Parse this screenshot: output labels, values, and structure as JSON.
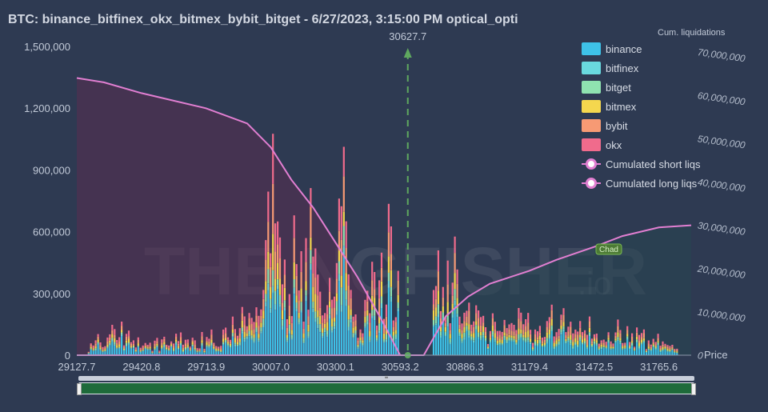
{
  "chart_data": {
    "type": "bar",
    "title": "BTC: binance_bitfinex_okx_bitmex_bybit_bitget - 6/27/2023, 3:15:00 PM optical_opti",
    "x_tick_labels": [
      "29127.7",
      "29420.8",
      "29713.9",
      "30007.0",
      "30300.1",
      "30593.2",
      "30886.3",
      "31179.4",
      "31472.5",
      "31765.6"
    ],
    "x_end_label": "Price",
    "y_left_ticks": [
      "0",
      "300,000",
      "600,000",
      "900,000",
      "1,200,000",
      "1,500,000"
    ],
    "y_left_range": [
      0,
      1500000
    ],
    "y_right_title": "Cum. liquidations",
    "y_right_ticks": [
      "0",
      "10,000,000",
      "20,000,000",
      "30,000,000",
      "40,000,000",
      "50,000,000",
      "60,000,000",
      "70,000,000"
    ],
    "y_right_range": [
      0,
      70000000
    ],
    "x_range": [
      29127.7,
      31912
    ],
    "current_price": 30627.7,
    "current_price_label": "30627.7",
    "stacked": true,
    "series": [
      {
        "name": "binance",
        "color": "#3ec2e8"
      },
      {
        "name": "bitfinex",
        "color": "#69d9de"
      },
      {
        "name": "bitget",
        "color": "#8fe3b0"
      },
      {
        "name": "bitmex",
        "color": "#f5d74e"
      },
      {
        "name": "bybit",
        "color": "#f79a74"
      },
      {
        "name": "okx",
        "color": "#f06b8c"
      }
    ],
    "bar_totals_sampled": [
      {
        "x": 29180,
        "v": 40000
      },
      {
        "x": 29260,
        "v": 120000
      },
      {
        "x": 29300,
        "v": 200000
      },
      {
        "x": 29380,
        "v": 70000
      },
      {
        "x": 29450,
        "v": 60000
      },
      {
        "x": 29550,
        "v": 90000
      },
      {
        "x": 29650,
        "v": 70000
      },
      {
        "x": 29750,
        "v": 110000
      },
      {
        "x": 29830,
        "v": 150000
      },
      {
        "x": 29900,
        "v": 200000
      },
      {
        "x": 29960,
        "v": 260000
      },
      {
        "x": 30010,
        "v": 1050000
      },
      {
        "x": 30050,
        "v": 500000
      },
      {
        "x": 30090,
        "v": 330000
      },
      {
        "x": 30120,
        "v": 700000
      },
      {
        "x": 30150,
        "v": 420000
      },
      {
        "x": 30200,
        "v": 680000
      },
      {
        "x": 30240,
        "v": 420000
      },
      {
        "x": 30300,
        "v": 330000
      },
      {
        "x": 30335,
        "v": 1150000
      },
      {
        "x": 30380,
        "v": 300000
      },
      {
        "x": 30420,
        "v": 250000
      },
      {
        "x": 30470,
        "v": 400000
      },
      {
        "x": 30510,
        "v": 500000
      },
      {
        "x": 30545,
        "v": 800000
      },
      {
        "x": 30565,
        "v": 600000
      },
      {
        "x": 30590,
        "v": 300000
      },
      {
        "x": 30740,
        "v": 450000
      },
      {
        "x": 30770,
        "v": 700000
      },
      {
        "x": 30800,
        "v": 400000
      },
      {
        "x": 30830,
        "v": 500000
      },
      {
        "x": 30870,
        "v": 300000
      },
      {
        "x": 30920,
        "v": 240000
      },
      {
        "x": 31000,
        "v": 150000
      },
      {
        "x": 31100,
        "v": 180000
      },
      {
        "x": 31180,
        "v": 200000
      },
      {
        "x": 31250,
        "v": 170000
      },
      {
        "x": 31350,
        "v": 210000
      },
      {
        "x": 31450,
        "v": 150000
      },
      {
        "x": 31550,
        "v": 130000
      },
      {
        "x": 31650,
        "v": 110000
      },
      {
        "x": 31750,
        "v": 80000
      },
      {
        "x": 31850,
        "v": 40000
      }
    ],
    "cumulative_series": [
      {
        "name": "Cumulated short liqs",
        "color": "#e27fd2",
        "axis": "right",
        "points": [
          [
            29127.7,
            0
          ],
          [
            30593.2,
            0
          ],
          [
            30700,
            0
          ],
          [
            30800,
            9000000
          ],
          [
            30900,
            13500000
          ],
          [
            31000,
            16500000
          ],
          [
            31179.4,
            19500000
          ],
          [
            31300,
            22000000
          ],
          [
            31472.5,
            25000000
          ],
          [
            31600,
            27500000
          ],
          [
            31765.6,
            29500000
          ],
          [
            31912,
            30000000
          ]
        ]
      },
      {
        "name": "Cumulated long liqs",
        "color": "#e27fd2",
        "axis": "right",
        "points": [
          [
            29127.7,
            64000000
          ],
          [
            29250,
            63000000
          ],
          [
            29420.8,
            60500000
          ],
          [
            29713.9,
            57000000
          ],
          [
            29900,
            53500000
          ],
          [
            30007.0,
            48000000
          ],
          [
            30100,
            40500000
          ],
          [
            30200,
            34000000
          ],
          [
            30300.1,
            26000000
          ],
          [
            30400,
            18000000
          ],
          [
            30500,
            9000000
          ],
          [
            30593.2,
            0
          ],
          [
            30700,
            0
          ]
        ]
      }
    ],
    "legend_position": "top-right",
    "badge_label": "Chad",
    "grid": false
  },
  "watermark": {
    "text_left": "THE",
    "text_right": "NGFISHER",
    "text_suffix": ".io"
  },
  "navigator": {
    "grip": "≡"
  }
}
